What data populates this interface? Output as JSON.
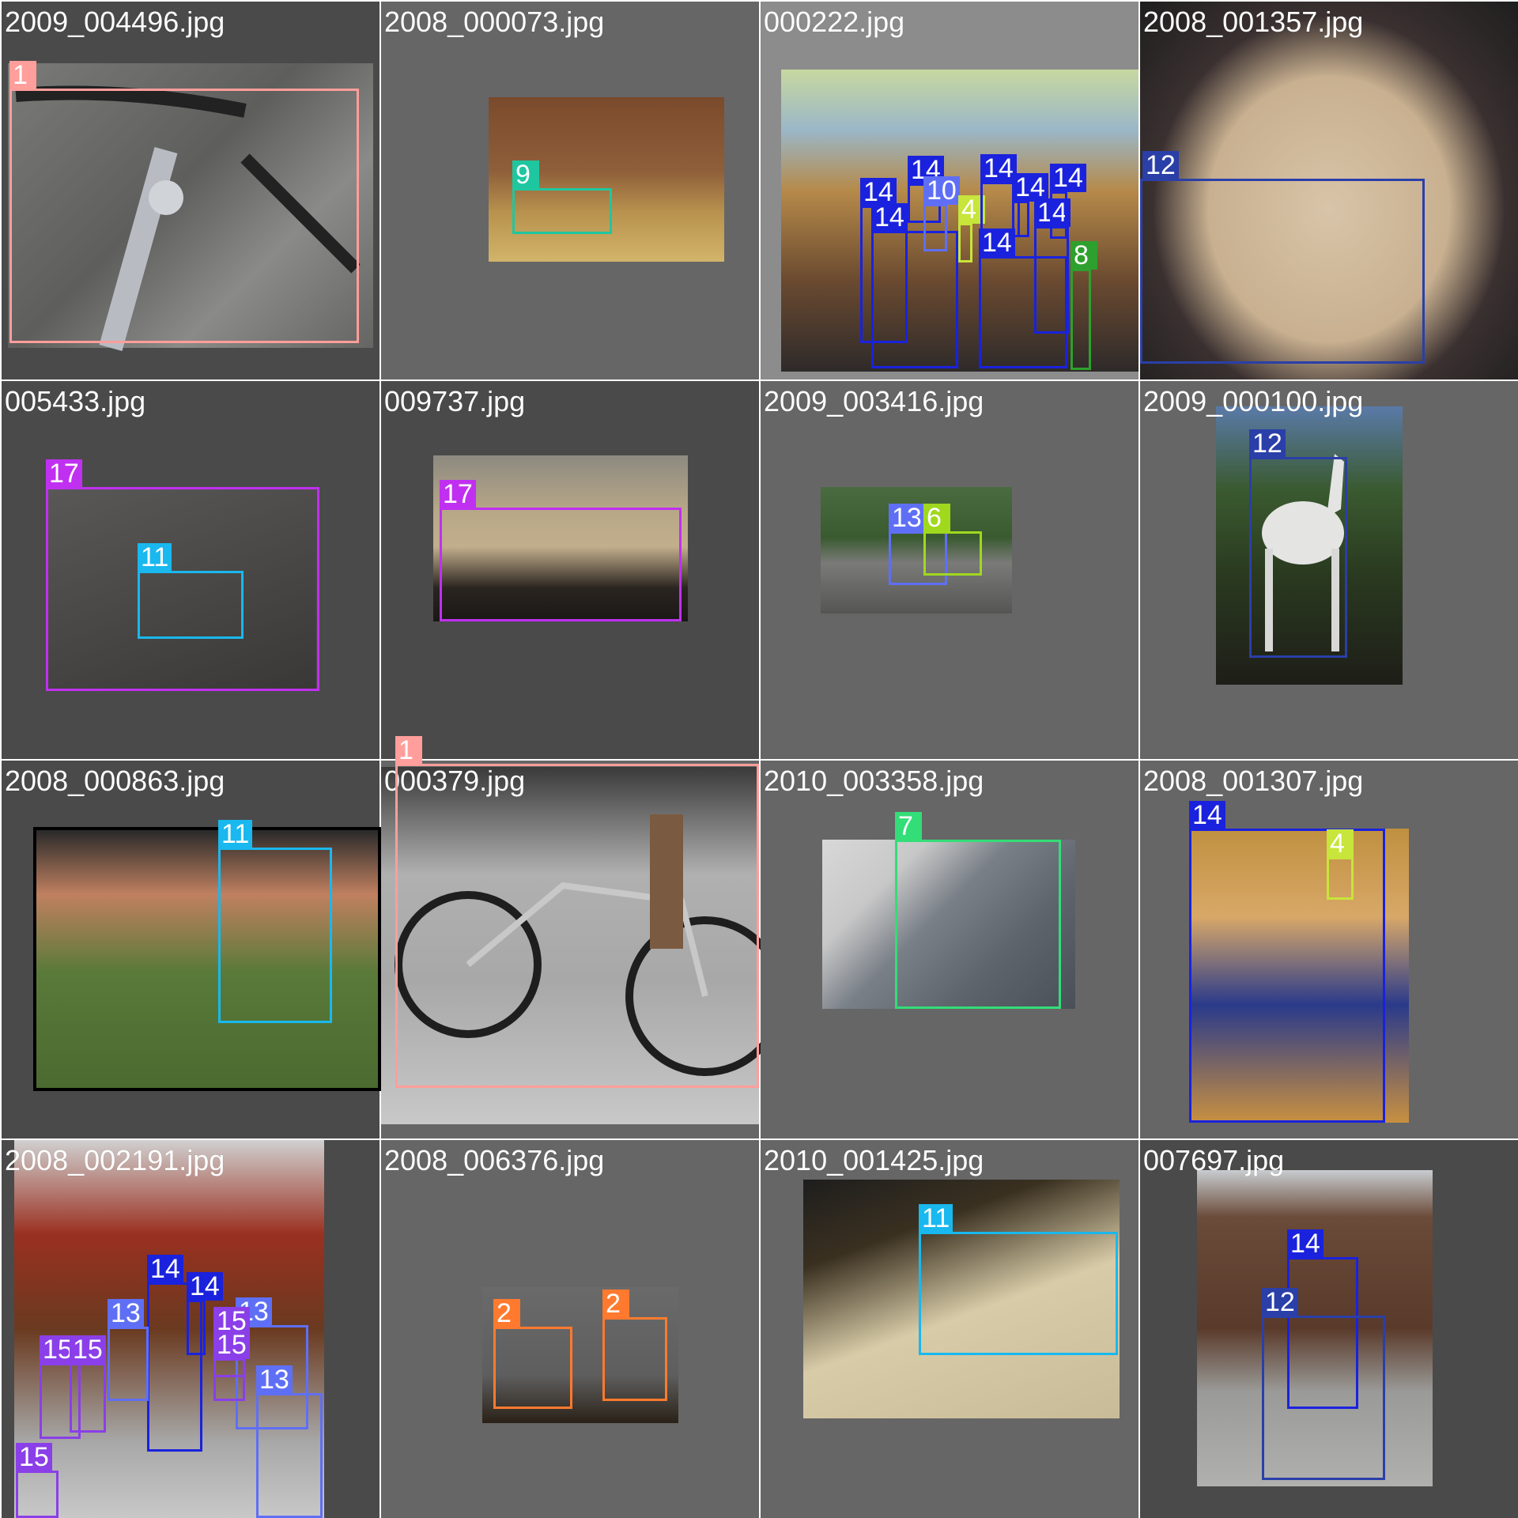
{
  "colors": {
    "c1": "#ff9e9b",
    "c2": "#ff7a2e",
    "c4": "#c7e53a",
    "c6": "#a0d81e",
    "c7": "#33dd77",
    "c8": "#2ea02e",
    "c9": "#1ec7a0",
    "c11": "#19b8ee",
    "c12": "#2a3fa8",
    "c13": "#5f6ff5",
    "c14": "#1a22dd",
    "c15": "#8a3fe8",
    "c17": "#c030f0"
  },
  "tiles": [
    {
      "filename": "2009_004496.jpg",
      "labels": [
        "1"
      ]
    },
    {
      "filename": "2008_000073.jpg",
      "labels": [
        "9"
      ]
    },
    {
      "filename": "000222.jpg",
      "labels": [
        "14",
        "14",
        "14",
        "14",
        "14",
        "14",
        "14",
        "14",
        "4",
        "10",
        "8"
      ]
    },
    {
      "filename": "2008_001357.jpg",
      "labels": [
        "12"
      ]
    },
    {
      "filename": "005433.jpg",
      "labels": [
        "17",
        "11"
      ]
    },
    {
      "filename": "009737.jpg",
      "labels": [
        "17"
      ]
    },
    {
      "filename": "2009_003416.jpg",
      "labels": [
        "13",
        "6"
      ]
    },
    {
      "filename": "2009_000100.jpg",
      "labels": [
        "12"
      ]
    },
    {
      "filename": "2008_000863.jpg",
      "labels": [
        "11"
      ]
    },
    {
      "filename": "000379.jpg",
      "labels": [
        "1"
      ]
    },
    {
      "filename": "2010_003358.jpg",
      "labels": [
        "7"
      ]
    },
    {
      "filename": "2008_001307.jpg",
      "labels": [
        "14",
        "4"
      ]
    },
    {
      "filename": "2008_002191.jpg",
      "labels": [
        "14",
        "14",
        "13",
        "13",
        "15",
        "15",
        "13",
        "15",
        "15",
        "15"
      ]
    },
    {
      "filename": "2008_006376.jpg",
      "labels": [
        "2",
        "2"
      ]
    },
    {
      "filename": "2010_001425.jpg",
      "labels": [
        "11"
      ]
    },
    {
      "filename": "007697.jpg",
      "labels": [
        "14",
        "12"
      ]
    }
  ]
}
